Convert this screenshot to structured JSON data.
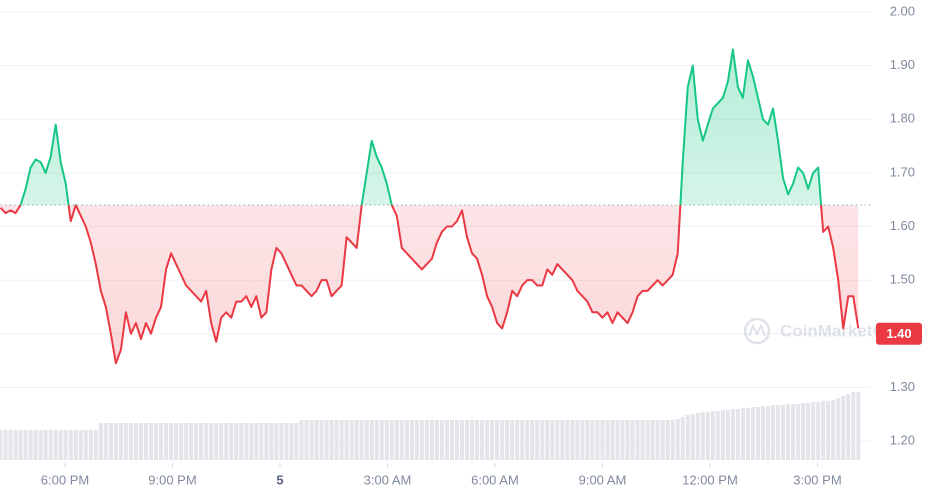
{
  "chart_data": {
    "type": "line",
    "x": [
      16.2,
      16.34,
      16.48,
      16.62,
      16.76,
      16.9,
      17.04,
      17.18,
      17.32,
      17.46,
      17.6,
      17.74,
      17.88,
      18.02,
      18.16,
      18.3,
      18.44,
      18.58,
      18.72,
      18.86,
      19,
      19.14,
      19.28,
      19.42,
      19.56,
      19.7,
      19.84,
      19.98,
      20.12,
      20.26,
      20.4,
      20.54,
      20.68,
      20.82,
      20.96,
      21.1,
      21.24,
      21.38,
      21.52,
      21.66,
      21.8,
      21.94,
      22.08,
      22.22,
      22.36,
      22.5,
      22.64,
      22.78,
      22.92,
      23.06,
      23.2,
      23.34,
      23.48,
      23.62,
      23.76,
      23.9,
      24.04,
      24.18,
      24.32,
      24.46,
      24.6,
      24.74,
      24.88,
      25.02,
      25.16,
      25.3,
      25.44,
      25.58,
      25.72,
      25.86,
      26,
      26.14,
      26.28,
      26.42,
      26.56,
      26.7,
      26.84,
      26.98,
      27.12,
      27.26,
      27.4,
      27.54,
      27.68,
      27.82,
      27.96,
      28.1,
      28.24,
      28.38,
      28.52,
      28.66,
      28.8,
      28.94,
      29.08,
      29.22,
      29.36,
      29.5,
      29.64,
      29.78,
      29.92,
      30.06,
      30.2,
      30.34,
      30.48,
      30.62,
      30.76,
      30.9,
      31.04,
      31.18,
      31.32,
      31.46,
      31.6,
      31.74,
      31.88,
      32.02,
      32.16,
      32.3,
      32.44,
      32.58,
      32.72,
      32.86,
      33,
      33.14,
      33.28,
      33.42,
      33.56,
      33.7,
      33.84,
      33.98,
      34.12,
      34.26,
      34.4,
      34.54,
      34.68,
      34.82,
      34.96,
      35.1,
      35.24,
      35.38,
      35.52,
      35.66,
      35.8,
      35.94,
      36.08,
      36.22,
      36.36,
      36.5,
      36.64,
      36.78,
      36.92,
      37.06,
      37.2,
      37.34,
      37.48,
      37.62,
      37.76,
      37.9,
      38.04,
      38.18,
      38.32,
      38.46,
      38.6,
      38.74,
      38.88,
      39.02,
      39.16,
      39.3,
      39.44,
      39.58,
      39.72,
      39.86,
      40,
      40.14
    ],
    "values": [
      1.635,
      1.625,
      1.63,
      1.625,
      1.64,
      1.67,
      1.71,
      1.725,
      1.72,
      1.7,
      1.73,
      1.79,
      1.72,
      1.68,
      1.61,
      1.64,
      1.62,
      1.6,
      1.57,
      1.53,
      1.48,
      1.45,
      1.4,
      1.345,
      1.37,
      1.44,
      1.4,
      1.42,
      1.39,
      1.42,
      1.4,
      1.43,
      1.45,
      1.52,
      1.55,
      1.53,
      1.51,
      1.49,
      1.48,
      1.47,
      1.46,
      1.48,
      1.42,
      1.385,
      1.43,
      1.44,
      1.43,
      1.46,
      1.46,
      1.47,
      1.45,
      1.47,
      1.43,
      1.44,
      1.52,
      1.56,
      1.55,
      1.53,
      1.51,
      1.49,
      1.49,
      1.48,
      1.47,
      1.48,
      1.5,
      1.5,
      1.47,
      1.48,
      1.49,
      1.58,
      1.57,
      1.56,
      1.64,
      1.7,
      1.76,
      1.73,
      1.71,
      1.68,
      1.64,
      1.62,
      1.56,
      1.55,
      1.54,
      1.53,
      1.52,
      1.53,
      1.54,
      1.57,
      1.59,
      1.6,
      1.6,
      1.61,
      1.63,
      1.58,
      1.55,
      1.54,
      1.51,
      1.47,
      1.45,
      1.42,
      1.41,
      1.44,
      1.48,
      1.47,
      1.49,
      1.5,
      1.5,
      1.49,
      1.49,
      1.52,
      1.51,
      1.53,
      1.52,
      1.51,
      1.5,
      1.48,
      1.47,
      1.46,
      1.44,
      1.44,
      1.43,
      1.44,
      1.42,
      1.44,
      1.43,
      1.42,
      1.44,
      1.47,
      1.48,
      1.48,
      1.49,
      1.5,
      1.49,
      1.5,
      1.51,
      1.55,
      1.72,
      1.86,
      1.9,
      1.8,
      1.76,
      1.79,
      1.82,
      1.83,
      1.84,
      1.87,
      1.93,
      1.86,
      1.84,
      1.91,
      1.88,
      1.84,
      1.8,
      1.79,
      1.82,
      1.76,
      1.69,
      1.66,
      1.68,
      1.71,
      1.7,
      1.67,
      1.7,
      1.71,
      1.59,
      1.6,
      1.56,
      1.5,
      1.41,
      1.47,
      1.47,
      1.41
    ],
    "volume": [
      30,
      30,
      30,
      30,
      30,
      30,
      30,
      30,
      30,
      30,
      30,
      30,
      30,
      30,
      30,
      30,
      30,
      30,
      30,
      30,
      37,
      37,
      37,
      37,
      37,
      37,
      37,
      37,
      37,
      37,
      37,
      37,
      37,
      37,
      37,
      37,
      37,
      37,
      37,
      37,
      37,
      37,
      37,
      37,
      37,
      37,
      37,
      37,
      37,
      37,
      37,
      37,
      37,
      37,
      37,
      37,
      37,
      37,
      37,
      37,
      40,
      40,
      40,
      40,
      40,
      40,
      40,
      40,
      40,
      40,
      40,
      40,
      40,
      40,
      40,
      40,
      40,
      40,
      40,
      40,
      40,
      40,
      40,
      40,
      40,
      40,
      40,
      40,
      40,
      40,
      40,
      40,
      40,
      40,
      40,
      40,
      40,
      40,
      40,
      40,
      40,
      40,
      40,
      40,
      40,
      40,
      40,
      40,
      40,
      40,
      40,
      40,
      40,
      40,
      40,
      40,
      40,
      40,
      40,
      40,
      40,
      40,
      40,
      40,
      40,
      40,
      40,
      40,
      40,
      40,
      40,
      40,
      40,
      40,
      40,
      41,
      43,
      45,
      46,
      47,
      48,
      48,
      49,
      49,
      50,
      50,
      51,
      51,
      52,
      52,
      53,
      53,
      54,
      54,
      55,
      55,
      55,
      56,
      56,
      56,
      57,
      57,
      58,
      58,
      59,
      59,
      60,
      62,
      64,
      66,
      68,
      68
    ],
    "volume_lim": [
      0,
      100
    ],
    "up_color": "#16c784",
    "down_color": "#ea3943",
    "volume_color": "#e3e5ea",
    "reference_value": 1.64,
    "xlim": [
      16.2,
      40.5
    ],
    "xticks": [
      {
        "value": 18,
        "label": "6:00 PM"
      },
      {
        "value": 21,
        "label": "9:00 PM"
      },
      {
        "value": 24,
        "label": "5"
      },
      {
        "value": 27,
        "label": "3:00 AM"
      },
      {
        "value": 30,
        "label": "6:00 AM"
      },
      {
        "value": 33,
        "label": "9:00 AM"
      },
      {
        "value": 36,
        "label": "12:00 PM"
      },
      {
        "value": 39,
        "label": "3:00 PM"
      }
    ],
    "ylim": [
      1.2,
      2.0
    ],
    "yticks": [
      {
        "value": 2.0,
        "label": "2.00"
      },
      {
        "value": 1.9,
        "label": "1.90"
      },
      {
        "value": 1.8,
        "label": "1.80"
      },
      {
        "value": 1.7,
        "label": "1.70"
      },
      {
        "value": 1.6,
        "label": "1.60"
      },
      {
        "value": 1.5,
        "label": "1.50"
      },
      {
        "value": 1.4,
        "label": "1.40"
      },
      {
        "value": 1.3,
        "label": "1.30"
      },
      {
        "value": 1.2,
        "label": "1.20"
      }
    ],
    "grid": true,
    "price_tag": {
      "value": 1.4,
      "label": "1.40"
    },
    "watermark": "CoinMarketCap"
  }
}
